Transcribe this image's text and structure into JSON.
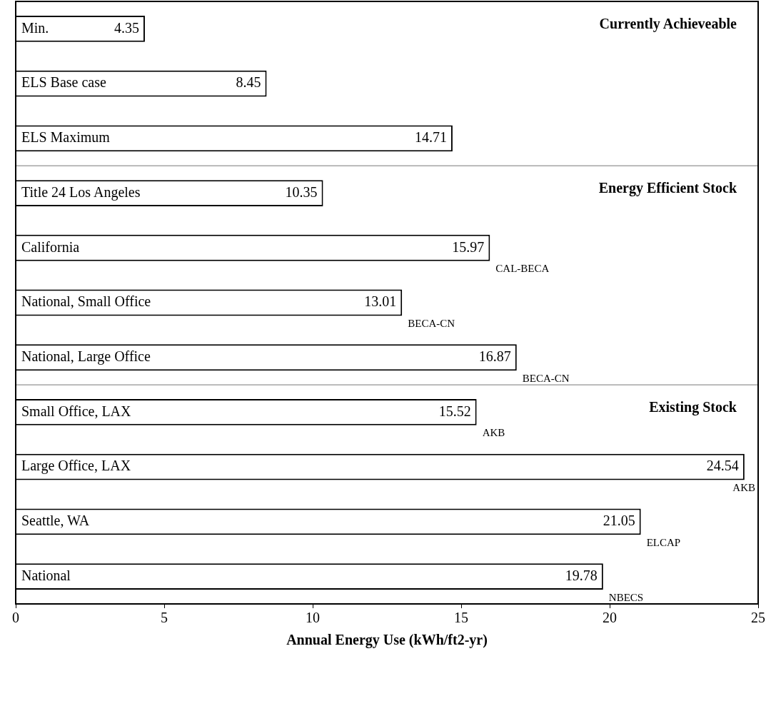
{
  "chart_data": {
    "type": "bar",
    "orientation": "horizontal",
    "xlabel": "Annual Energy Use (kWh/ft2-yr)",
    "categories": [
      "Min.",
      "ELS Base case",
      "ELS Maximum",
      "Title 24 Los Angeles",
      "California",
      "National, Small Office",
      "National, Large Office",
      "Small Office, LAX",
      "Large Office, LAX",
      "Seattle, WA",
      "National"
    ],
    "values": [
      4.35,
      8.45,
      14.71,
      10.35,
      15.97,
      13.01,
      16.87,
      15.52,
      24.54,
      21.05,
      19.78
    ],
    "color": "#ffffff",
    "data_labels": true,
    "xlim": [
      0,
      25
    ],
    "xticks": [
      0,
      5,
      10,
      15,
      20,
      25
    ],
    "grid": false,
    "legend": false,
    "tick_labels": "x",
    "annotations": [
      "Currently Achieveable",
      "Energy Efficient Stock",
      "Existing Stock",
      {
        "text": "CAL-BECA",
        "x": 15.97,
        "y": "California"
      },
      {
        "text": "BECA-CN",
        "x": 13.01,
        "y": "National, Small Office"
      },
      {
        "text": "BECA-CN",
        "x": 16.87,
        "y": "National, Large Office"
      },
      {
        "text": "AKB",
        "x": 15.52,
        "y": "Small Office, LAX"
      },
      {
        "text": "AKB",
        "x": 24.54,
        "y": "Large Office, LAX"
      },
      {
        "text": "ELCAP",
        "x": 21.05,
        "y": "Seattle, WA"
      },
      {
        "text": "NBECS",
        "x": 19.78,
        "y": "National"
      }
    ]
  }
}
